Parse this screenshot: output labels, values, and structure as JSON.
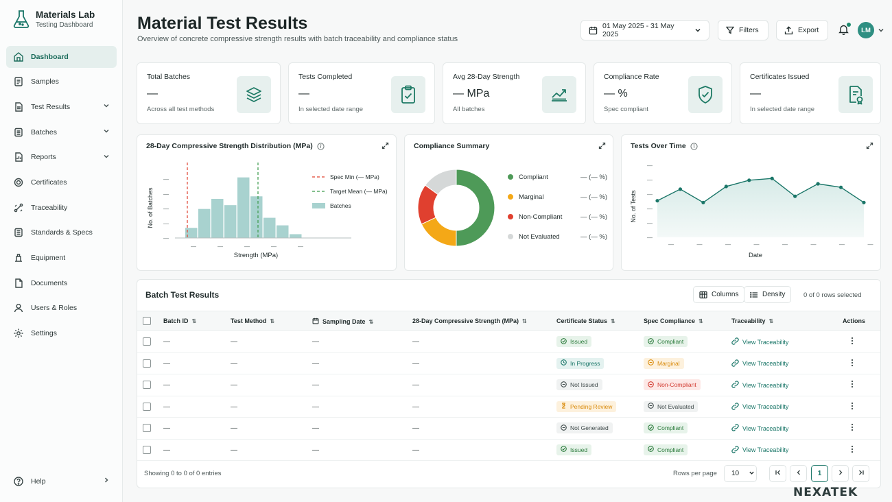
{
  "brand": {
    "title": "Materials Lab",
    "subtitle": "Testing Dashboard"
  },
  "sidebar": {
    "items": [
      {
        "label": "Dashboard",
        "icon": "home-icon"
      },
      {
        "label": "Samples",
        "icon": "clipboard-list-icon"
      },
      {
        "label": "Test Results",
        "icon": "document-icon"
      },
      {
        "label": "Batches",
        "icon": "layers-icon"
      },
      {
        "label": "Reports",
        "icon": "report-icon"
      },
      {
        "label": "Certificates",
        "icon": "badge-icon"
      },
      {
        "label": "Traceability",
        "icon": "trace-icon"
      },
      {
        "label": "Standards & Specs",
        "icon": "book-icon"
      },
      {
        "label": "Equipment",
        "icon": "equipment-icon"
      },
      {
        "label": "Documents",
        "icon": "file-icon"
      },
      {
        "label": "Users & Roles",
        "icon": "users-icon"
      },
      {
        "label": "Settings",
        "icon": "gear-icon"
      }
    ],
    "help": "Help"
  },
  "header": {
    "title": "Material Test Results",
    "subtitle": "Overview of concrete compressive strength results with batch traceability and compliance status",
    "date_range": "01 May 2025 - 31 May 2025",
    "filters_label": "Filters",
    "export_label": "Export",
    "avatar_initials": "LM"
  },
  "kpis": [
    {
      "label": "Total Batches",
      "value": "—",
      "note": "Across all test methods"
    },
    {
      "label": "Tests Completed",
      "value": "—",
      "note": "In selected date range"
    },
    {
      "label": "Avg 28-Day Strength",
      "value": "— MPa",
      "note": "All batches"
    },
    {
      "label": "Compliance Rate",
      "value": "— %",
      "note": "Spec compliant"
    },
    {
      "label": "Certificates Issued",
      "value": "—",
      "note": "In selected date range"
    }
  ],
  "histogram": {
    "title": "28-Day Compressive Strength Distribution (MPa)",
    "xlabel": "Strength (MPa)",
    "ylabel": "No. of Batches",
    "tick_label": "—",
    "legend": {
      "spec_min": "Spec Min (— MPa)",
      "target_mean": "Target Mean (— MPa)",
      "batches": "Batches"
    }
  },
  "compliance": {
    "title": "Compliance Summary",
    "items": [
      {
        "label": "Compliant",
        "value": "— (— %)",
        "color": "#4e9a58"
      },
      {
        "label": "Marginal",
        "value": "— (— %)",
        "color": "#f4a817"
      },
      {
        "label": "Non-Compliant",
        "value": "— (— %)",
        "color": "#e0402f"
      },
      {
        "label": "Not Evaluated",
        "value": "— (— %)",
        "color": "#d5d8d8"
      }
    ]
  },
  "tests_over_time": {
    "title": "Tests Over Time",
    "xlabel": "Date",
    "ylabel": "No. of Tests",
    "tick_label": "—"
  },
  "chart_data": [
    {
      "type": "bar",
      "title": "28-Day Compressive Strength Distribution (MPa)",
      "xlabel": "Strength (MPa)",
      "ylabel": "No. of Batches",
      "values": [
        0.8,
        2.3,
        3.1,
        2.6,
        4.8,
        3.3,
        1.6,
        1.0,
        0.3
      ],
      "color": "#a8d2cf"
    },
    {
      "type": "pie",
      "title": "Compliance Summary",
      "categories": [
        "Compliant",
        "Marginal",
        "Non-Compliant",
        "Not Evaluated"
      ],
      "values": [
        50,
        18,
        17,
        15
      ]
    },
    {
      "type": "area",
      "title": "Tests Over Time",
      "xlabel": "Date",
      "ylabel": "No. of Tests",
      "values": [
        4.1,
        5.4,
        3.9,
        5.7,
        6.4,
        6.6,
        4.6,
        6.0,
        5.6,
        3.9
      ],
      "color": "#1a7668"
    }
  ],
  "table": {
    "title": "Batch Test Results",
    "columns_btn": "Columns",
    "density_btn": "Density",
    "rows_selected": "0 of 0 rows selected",
    "headers": [
      "Batch ID",
      "Test Method",
      "Sampling Date",
      "28-Day Compressive Strength (MPa)",
      "Certificate Status",
      "Spec Compliance",
      "Traceability",
      "Actions"
    ],
    "rows": [
      {
        "batch": "—",
        "method": "—",
        "date": "—",
        "strength": "—",
        "cert": "Issued",
        "cert_style": "b-green",
        "cert_icon": "check",
        "spec": "Compliant",
        "spec_style": "b-green",
        "spec_icon": "check",
        "trace": "View Traceability"
      },
      {
        "batch": "—",
        "method": "—",
        "date": "—",
        "strength": "—",
        "cert": "In Progress",
        "cert_style": "b-teal",
        "cert_icon": "clock",
        "spec": "Marginal",
        "spec_style": "b-amber",
        "spec_icon": "dash",
        "trace": "View Traceability"
      },
      {
        "batch": "—",
        "method": "—",
        "date": "—",
        "strength": "—",
        "cert": "Not Issued",
        "cert_style": "b-grey",
        "cert_icon": "dash",
        "spec": "Non-Compliant",
        "spec_style": "b-red",
        "spec_icon": "dash",
        "trace": "View Traceability"
      },
      {
        "batch": "—",
        "method": "—",
        "date": "—",
        "strength": "—",
        "cert": "Pending Review",
        "cert_style": "b-amber",
        "cert_icon": "hourglass",
        "spec": "Not Evaluated",
        "spec_style": "b-grey",
        "spec_icon": "dash",
        "trace": "View Traceability"
      },
      {
        "batch": "—",
        "method": "—",
        "date": "—",
        "strength": "—",
        "cert": "Not Generated",
        "cert_style": "b-grey",
        "cert_icon": "dash",
        "spec": "Compliant",
        "spec_style": "b-green",
        "spec_icon": "check",
        "trace": "View Traceability"
      },
      {
        "batch": "—",
        "method": "—",
        "date": "—",
        "strength": "—",
        "cert": "Issued",
        "cert_style": "b-green",
        "cert_icon": "check",
        "spec": "Compliant",
        "spec_style": "b-green",
        "spec_icon": "check",
        "trace": "View Traceability"
      }
    ],
    "showing": "Showing 0 to 0 of 0 entries",
    "rows_per_page_label": "Rows per page",
    "rows_per_page": "10",
    "current_page": "1"
  },
  "watermark": "NEXATEK"
}
